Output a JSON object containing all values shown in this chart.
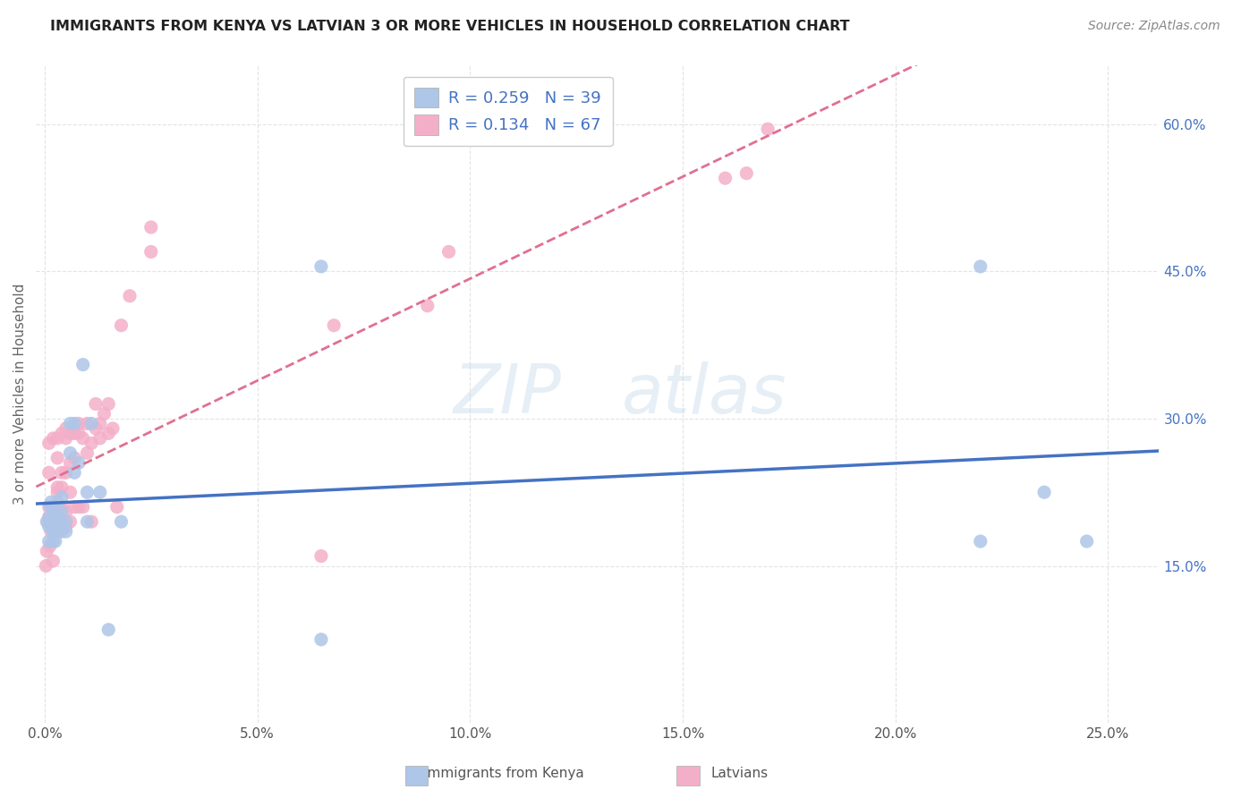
{
  "title": "IMMIGRANTS FROM KENYA VS LATVIAN 3 OR MORE VEHICLES IN HOUSEHOLD CORRELATION CHART",
  "source": "Source: ZipAtlas.com",
  "ylabel": "3 or more Vehicles in Household",
  "series1_label": "Immigrants from Kenya",
  "series1_color": "#aec6e8",
  "series1_line_color": "#4472c4",
  "series1_R": 0.259,
  "series1_N": 39,
  "series2_label": "Latvians",
  "series2_color": "#f4afc8",
  "series2_line_color": "#e07090",
  "series2_R": 0.134,
  "series2_N": 67,
  "background_color": "#ffffff",
  "grid_color": "#dddddd",
  "x_min": -0.002,
  "x_max": 0.262,
  "y_min": -0.01,
  "y_max": 0.66,
  "x_tick_vals": [
    0.0,
    0.05,
    0.1,
    0.15,
    0.2,
    0.25
  ],
  "x_tick_labels": [
    "0.0%",
    "5.0%",
    "10.0%",
    "15.0%",
    "20.0%",
    "25.0%"
  ],
  "y_tick_vals": [
    0.15,
    0.3,
    0.45,
    0.6
  ],
  "y_tick_labels": [
    "15.0%",
    "30.0%",
    "45.0%",
    "60.0%"
  ],
  "series1_x": [
    0.0005,
    0.001,
    0.001,
    0.0012,
    0.0014,
    0.0015,
    0.002,
    0.002,
    0.002,
    0.0022,
    0.0025,
    0.003,
    0.003,
    0.003,
    0.003,
    0.0035,
    0.004,
    0.004,
    0.004,
    0.005,
    0.005,
    0.006,
    0.006,
    0.007,
    0.007,
    0.008,
    0.009,
    0.01,
    0.01,
    0.011,
    0.013,
    0.015,
    0.018,
    0.065,
    0.065,
    0.22,
    0.22,
    0.235,
    0.245
  ],
  "series1_y": [
    0.195,
    0.175,
    0.19,
    0.2,
    0.21,
    0.215,
    0.175,
    0.185,
    0.195,
    0.205,
    0.175,
    0.185,
    0.19,
    0.2,
    0.215,
    0.195,
    0.185,
    0.205,
    0.22,
    0.185,
    0.195,
    0.265,
    0.295,
    0.245,
    0.295,
    0.255,
    0.355,
    0.195,
    0.225,
    0.295,
    0.225,
    0.085,
    0.195,
    0.075,
    0.455,
    0.175,
    0.455,
    0.225,
    0.175
  ],
  "series2_x": [
    0.0003,
    0.0005,
    0.0008,
    0.001,
    0.001,
    0.001,
    0.001,
    0.0012,
    0.0015,
    0.002,
    0.002,
    0.002,
    0.002,
    0.0025,
    0.003,
    0.003,
    0.003,
    0.003,
    0.003,
    0.003,
    0.0035,
    0.004,
    0.004,
    0.004,
    0.004,
    0.004,
    0.005,
    0.005,
    0.005,
    0.005,
    0.005,
    0.006,
    0.006,
    0.006,
    0.006,
    0.007,
    0.007,
    0.007,
    0.008,
    0.008,
    0.008,
    0.009,
    0.009,
    0.01,
    0.01,
    0.011,
    0.011,
    0.012,
    0.012,
    0.013,
    0.013,
    0.014,
    0.015,
    0.015,
    0.016,
    0.017,
    0.018,
    0.02,
    0.025,
    0.025,
    0.065,
    0.068,
    0.09,
    0.095,
    0.16,
    0.165,
    0.17
  ],
  "series2_y": [
    0.15,
    0.165,
    0.195,
    0.2,
    0.21,
    0.245,
    0.275,
    0.17,
    0.185,
    0.195,
    0.21,
    0.28,
    0.155,
    0.195,
    0.195,
    0.21,
    0.225,
    0.23,
    0.26,
    0.28,
    0.185,
    0.195,
    0.21,
    0.23,
    0.285,
    0.245,
    0.19,
    0.205,
    0.245,
    0.28,
    0.29,
    0.195,
    0.225,
    0.255,
    0.285,
    0.21,
    0.26,
    0.285,
    0.21,
    0.285,
    0.295,
    0.21,
    0.28,
    0.265,
    0.295,
    0.195,
    0.275,
    0.29,
    0.315,
    0.295,
    0.28,
    0.305,
    0.285,
    0.315,
    0.29,
    0.21,
    0.395,
    0.425,
    0.47,
    0.495,
    0.16,
    0.395,
    0.415,
    0.47,
    0.545,
    0.55,
    0.595
  ]
}
